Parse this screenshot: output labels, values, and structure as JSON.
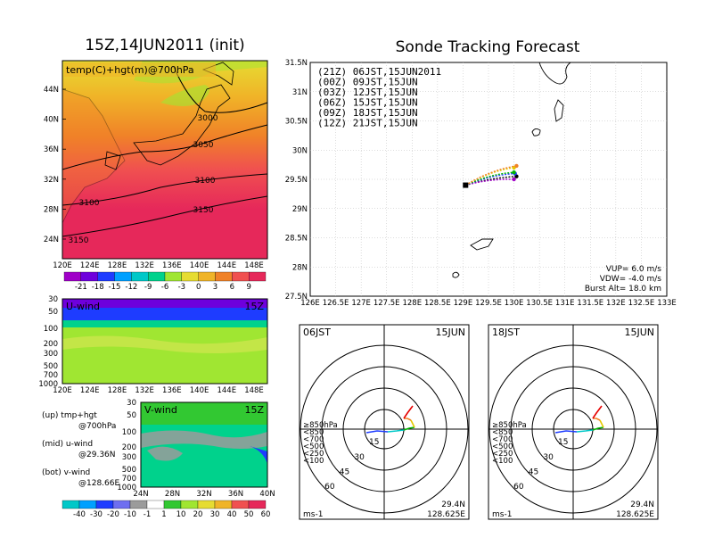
{
  "left_title": "15Z,14JUN2011 (init)",
  "right_title": "Sonde Tracking Forecast",
  "map": {
    "field_label": "temp(C)+hgt(m)@700hPa",
    "lat_ticks": [
      "44N",
      "40N",
      "36N",
      "32N",
      "28N",
      "24N"
    ],
    "lon_ticks": [
      "120E",
      "124E",
      "128E",
      "132E",
      "136E",
      "140E",
      "144E",
      "148E"
    ],
    "contour_labels": [
      "3000",
      "3050",
      "3100",
      "3100",
      "3150",
      "3150"
    ],
    "colorbar_labels": [
      "-21",
      "-18",
      "-15",
      "-12",
      "-9",
      "-6",
      "-3",
      "0",
      "3",
      "6",
      "9"
    ],
    "colorbar_colors": [
      "#a000c8",
      "#6e00dc",
      "#1e3cff",
      "#00a0ff",
      "#00c8c8",
      "#00d28c",
      "#a0e632",
      "#e6dc32",
      "#f0b428",
      "#f08228",
      "#f05050",
      "#e6285a"
    ]
  },
  "uwind": {
    "label": "U-wind",
    "time": "15Z",
    "p_ticks": [
      "30",
      "50",
      "100",
      "200",
      "300",
      "500",
      "700",
      "1000"
    ],
    "lon_ticks": [
      "120E",
      "124E",
      "128E",
      "132E",
      "136E",
      "140E",
      "144E",
      "148E"
    ]
  },
  "vwind": {
    "label": "V-wind",
    "time": "15Z",
    "p_ticks": [
      "30",
      "50",
      "100",
      "200",
      "300",
      "500",
      "700",
      "1000"
    ],
    "lat_ticks": [
      "24N",
      "28N",
      "32N",
      "36N",
      "40N"
    ],
    "colorbar_labels": [
      "-40",
      "-30",
      "-20",
      "-10",
      "-1",
      "1",
      "10",
      "20",
      "30",
      "40",
      "50",
      "60"
    ]
  },
  "notes": {
    "up1": "(up) tmp+hgt",
    "up2": "@700hPa",
    "mid1": "(mid) u-wind",
    "mid2": "@29.36N",
    "bot1": "(bot) v-wind",
    "bot2": "@128.66E"
  },
  "track": {
    "lat_ticks": [
      "31.5N",
      "31N",
      "30.5N",
      "30N",
      "29.5N",
      "29N",
      "28.5N",
      "28N",
      "27.5N"
    ],
    "lon_ticks": [
      "126E",
      "126.5E",
      "127E",
      "127.5E",
      "128E",
      "128.5E",
      "129E",
      "129.5E",
      "130E",
      "130.5E",
      "131E",
      "131.5E",
      "132E",
      "132.5E",
      "133E"
    ],
    "legend": [
      {
        "text": "(21Z)  06JST,15JUN2011",
        "color": "#000000"
      },
      {
        "text": "(00Z)  09JST,15JUN",
        "color": "#a000c8"
      },
      {
        "text": "(03Z)  12JST,15JUN",
        "color": "#1e3cff"
      },
      {
        "text": "(06Z)  15JST,15JUN",
        "color": "#00b400"
      },
      {
        "text": "(09Z)  18JST,15JUN",
        "color": "#e6c800"
      },
      {
        "text": "(12Z)  21JST,15JUN",
        "color": "#f08228"
      }
    ],
    "vup": "VUP=  6.0  m/s",
    "vdw": "VDW= -4.0  m/s",
    "burst": "Burst Alt=  18.0  km"
  },
  "hodo_left": {
    "time": "06JST",
    "date": "15JUN",
    "rings": [
      "15",
      "30",
      "45",
      "60"
    ],
    "levels": [
      "≥850hPa",
      "<850",
      "<700",
      "<500",
      "<250",
      "<100"
    ],
    "unit": "ms-1",
    "lat": "29.4N",
    "lon": "128.625E"
  },
  "hodo_right": {
    "time": "18JST",
    "date": "15JUN",
    "rings": [
      "15",
      "30",
      "45",
      "60"
    ],
    "levels": [
      "≥850hPa",
      "<850",
      "<700",
      "<500",
      "<250",
      "<100"
    ],
    "unit": "ms-1",
    "lat": "29.4N",
    "lon": "128.625E"
  },
  "level_colors": [
    "#e60000",
    "#f08228",
    "#e6c800",
    "#00b400",
    "#00c8c8",
    "#1e3cff"
  ]
}
